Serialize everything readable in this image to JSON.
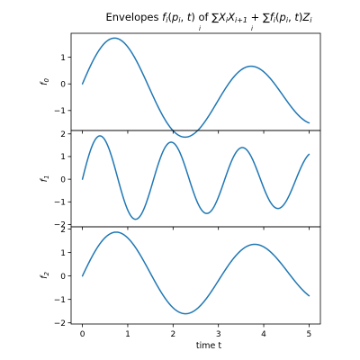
{
  "chart_data": {
    "type": "line",
    "title": "",
    "xlabel": "time t",
    "colors": {
      "line": "#1f77b4"
    },
    "grid": false,
    "panels": [
      {
        "ylabel": "f",
        "ylabel_sub": "0",
        "xlim": [
          -0.25,
          5.25
        ],
        "ylim": [
          -1.75,
          1.9
        ],
        "yticks": [
          -1,
          0,
          1
        ],
        "series": [
          {
            "kind": "f0"
          }
        ]
      },
      {
        "ylabel": "f",
        "ylabel_sub": "1",
        "xlim": [
          -0.25,
          5.25
        ],
        "ylim": [
          -2.1,
          2.15
        ],
        "yticks": [
          -2,
          -1,
          0,
          1,
          2
        ],
        "series": [
          {
            "kind": "f1"
          }
        ]
      },
      {
        "ylabel": "f",
        "ylabel_sub": "2",
        "xlim": [
          -0.25,
          5.25
        ],
        "ylim": [
          -2.05,
          2.1
        ],
        "yticks": [
          -2,
          -1,
          0,
          1,
          2
        ],
        "series": [
          {
            "kind": "f2"
          }
        ]
      }
    ],
    "xticks": [
      0,
      1,
      2,
      3,
      4,
      5
    ]
  }
}
